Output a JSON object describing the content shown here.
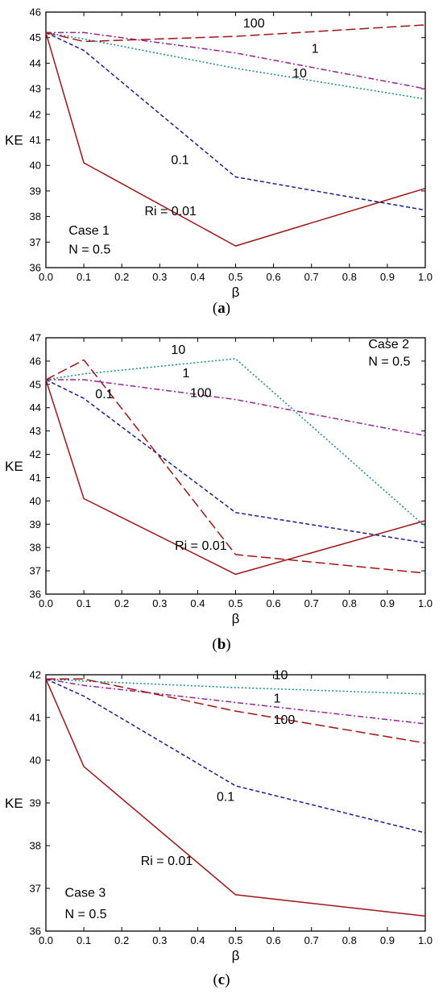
{
  "chart_data": [
    {
      "type": "line",
      "caption_letter": "a",
      "xlabel": "β",
      "ylabel": "KE",
      "xlim": [
        0,
        1
      ],
      "ylim": [
        36,
        46
      ],
      "x_ticks": [
        "0.0",
        "0.1",
        "0.2",
        "0.3",
        "0.4",
        "0.5",
        "0.6",
        "0.7",
        "0.8",
        "0.9",
        "1.0"
      ],
      "y_ticks": [
        "36",
        "37",
        "38",
        "39",
        "40",
        "41",
        "42",
        "43",
        "44",
        "45",
        "46"
      ],
      "x": [
        0,
        0.1,
        0.5,
        1.0
      ],
      "series": [
        {
          "name": "Ri = 0.01",
          "values": [
            45.2,
            40.1,
            36.85,
            39.1
          ],
          "color": "#a01414",
          "dash": "solid"
        },
        {
          "name": "0.1",
          "values": [
            45.2,
            44.5,
            39.55,
            38.25
          ],
          "color": "#1c1c9a",
          "dash": "shortdash"
        },
        {
          "name": "1",
          "values": [
            45.2,
            45.2,
            44.4,
            43.0
          ],
          "color": "#9b1fa0",
          "dash": "dashdot"
        },
        {
          "name": "10",
          "values": [
            45.2,
            44.95,
            43.8,
            42.6
          ],
          "color": "#138d8d",
          "dash": "dotted"
        },
        {
          "name": "100",
          "values": [
            45.2,
            44.85,
            45.05,
            45.5
          ],
          "color": "#a01414",
          "dash": "longdash"
        }
      ],
      "annotations": [
        {
          "text": "100",
          "x": 0.52,
          "y": 45.4
        },
        {
          "text": "1",
          "x": 0.7,
          "y": 44.4
        },
        {
          "text": "10",
          "x": 0.65,
          "y": 43.45
        },
        {
          "text": "0.1",
          "x": 0.33,
          "y": 40.05
        },
        {
          "text": "Ri = 0.01",
          "x": 0.26,
          "y": 38.05
        },
        {
          "text": "Case 1",
          "x": 0.06,
          "y": 37.3
        },
        {
          "text": "N = 0.5",
          "x": 0.06,
          "y": 36.55
        }
      ]
    },
    {
      "type": "line",
      "caption_letter": "b",
      "xlabel": "β",
      "ylabel": "KE",
      "xlim": [
        0,
        1
      ],
      "ylim": [
        36,
        47
      ],
      "x_ticks": [
        "0.0",
        "0.1",
        "0.2",
        "0.3",
        "0.4",
        "0.5",
        "0.6",
        "0.7",
        "0.8",
        "0.9",
        "1.0"
      ],
      "y_ticks": [
        "36",
        "37",
        "38",
        "39",
        "40",
        "41",
        "42",
        "43",
        "44",
        "45",
        "46",
        "47"
      ],
      "x": [
        0,
        0.1,
        0.5,
        1.0
      ],
      "series": [
        {
          "name": "Ri = 0.01",
          "values": [
            45.2,
            40.1,
            36.85,
            39.15
          ],
          "color": "#a01414",
          "dash": "solid"
        },
        {
          "name": "0.1",
          "values": [
            45.2,
            44.4,
            39.5,
            38.2
          ],
          "color": "#1c1c9a",
          "dash": "shortdash"
        },
        {
          "name": "1",
          "values": [
            45.2,
            45.2,
            44.35,
            42.8
          ],
          "color": "#9b1fa0",
          "dash": "dashdot"
        },
        {
          "name": "10",
          "values": [
            45.2,
            45.45,
            46.1,
            38.9
          ],
          "color": "#138d8d",
          "dash": "dotted"
        },
        {
          "name": "100",
          "values": [
            45.2,
            46.05,
            37.7,
            36.9
          ],
          "color": "#a01414",
          "dash": "longdash"
        }
      ],
      "annotations": [
        {
          "text": "10",
          "x": 0.33,
          "y": 46.3
        },
        {
          "text": "1",
          "x": 0.36,
          "y": 45.3
        },
        {
          "text": "0.1",
          "x": 0.13,
          "y": 44.4
        },
        {
          "text": "100",
          "x": 0.38,
          "y": 44.45
        },
        {
          "text": "Ri = 0.01",
          "x": 0.34,
          "y": 37.9
        },
        {
          "text": "Case 2",
          "x": 0.85,
          "y": 46.55
        },
        {
          "text": "N = 0.5",
          "x": 0.85,
          "y": 45.8
        }
      ]
    },
    {
      "type": "line",
      "caption_letter": "c",
      "xlabel": "β",
      "ylabel": "KE",
      "xlim": [
        0,
        1
      ],
      "ylim": [
        36,
        42
      ],
      "x_ticks": [
        "0.0",
        "0.1",
        "0.2",
        "0.3",
        "0.4",
        "0.5",
        "0.6",
        "0.7",
        "0.8",
        "0.9",
        "1.0"
      ],
      "y_ticks": [
        "36",
        "37",
        "38",
        "39",
        "40",
        "41",
        "42"
      ],
      "x": [
        0,
        0.1,
        0.5,
        1.0
      ],
      "series": [
        {
          "name": "Ri = 0.01",
          "values": [
            41.9,
            39.85,
            36.85,
            36.35
          ],
          "color": "#a01414",
          "dash": "solid"
        },
        {
          "name": "0.1",
          "values": [
            41.9,
            41.5,
            39.4,
            38.3
          ],
          "color": "#1c1c9a",
          "dash": "shortdash"
        },
        {
          "name": "1",
          "values": [
            41.9,
            41.75,
            41.35,
            40.85
          ],
          "color": "#9b1fa0",
          "dash": "dashdot"
        },
        {
          "name": "10",
          "values": [
            41.9,
            41.85,
            41.7,
            41.55
          ],
          "color": "#138d8d",
          "dash": "dotted"
        },
        {
          "name": "100",
          "values": [
            41.9,
            41.9,
            41.15,
            40.4
          ],
          "color": "#a01414",
          "dash": "longdash"
        }
      ],
      "annotations": [
        {
          "text": "10",
          "x": 0.6,
          "y": 41.9
        },
        {
          "text": "1",
          "x": 0.6,
          "y": 41.35
        },
        {
          "text": "100",
          "x": 0.6,
          "y": 40.85
        },
        {
          "text": "0.1",
          "x": 0.45,
          "y": 39.05
        },
        {
          "text": "Ri = 0.01",
          "x": 0.25,
          "y": 37.55
        },
        {
          "text": "Case 3",
          "x": 0.05,
          "y": 36.8
        },
        {
          "text": "N = 0.5",
          "x": 0.05,
          "y": 36.3
        }
      ]
    }
  ]
}
